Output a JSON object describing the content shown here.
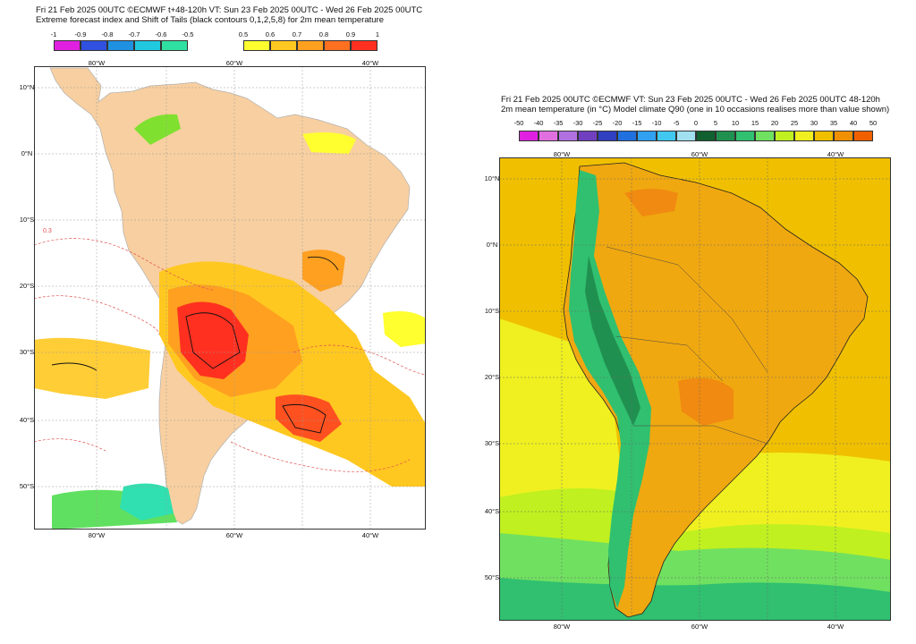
{
  "left_panel": {
    "title_line1": "Fri 21 Feb 2025 00UTC ©ECMWF t+48-120h  VT: Sun 23 Feb 2025 00UTC - Wed 26 Feb 2025 00UTC",
    "title_line2": "Extreme forecast index and Shift of Tails (black contours 0,1,2,5,8) for 2m mean temperature",
    "neg_legend": {
      "labels": [
        "-1",
        "-0.9",
        "-0.8",
        "-0.7",
        "-0.6",
        "-0.5"
      ],
      "colors": [
        "#e020e0",
        "#3050e0",
        "#2090e0",
        "#20c8e0",
        "#30e0a0",
        "#80e030"
      ]
    },
    "pos_legend": {
      "labels": [
        "0.5",
        "0.6",
        "0.7",
        "0.8",
        "0.9",
        "1"
      ],
      "colors": [
        "#ffff30",
        "#ffc820",
        "#ffa020",
        "#ff7020",
        "#ff3020"
      ]
    },
    "lon_labels": [
      "80°W",
      "60°W",
      "40°W"
    ],
    "lat_labels": [
      "10°N",
      "0°N",
      "10°S",
      "20°S",
      "30°S",
      "40°S",
      "50°S"
    ],
    "contour_label": "0.3"
  },
  "right_panel": {
    "title_line1": "Fri 21 Feb 2025 00UTC ©ECMWF VT: Sun 23 Feb 2025 00UTC - Wed 26 Feb 2025 00UTC   48-120h",
    "title_line2": "2m mean temperature (in °C)  Model climate Q90 (one in 10 occasions realises more than value shown)",
    "legend": {
      "labels": [
        "-50",
        "-40",
        "-35",
        "-30",
        "-25",
        "-20",
        "-15",
        "-10",
        "-5",
        "0",
        "5",
        "10",
        "15",
        "20",
        "25",
        "30",
        "35",
        "40",
        "50"
      ],
      "colors": [
        "#e020e0",
        "#e070e0",
        "#b070e0",
        "#7040c0",
        "#3040c0",
        "#2070e0",
        "#30a0f0",
        "#40c8f0",
        "#a0e0f0",
        "#106030",
        "#209050",
        "#30c070",
        "#70e060",
        "#c0f020",
        "#f0f020",
        "#f0c000",
        "#f09000",
        "#f06000"
      ]
    },
    "lon_labels": [
      "80°W",
      "60°W",
      "40°W"
    ],
    "lat_labels": [
      "10°N",
      "0°N",
      "10°S",
      "20°S",
      "30°S",
      "40°S",
      "50°S"
    ]
  }
}
